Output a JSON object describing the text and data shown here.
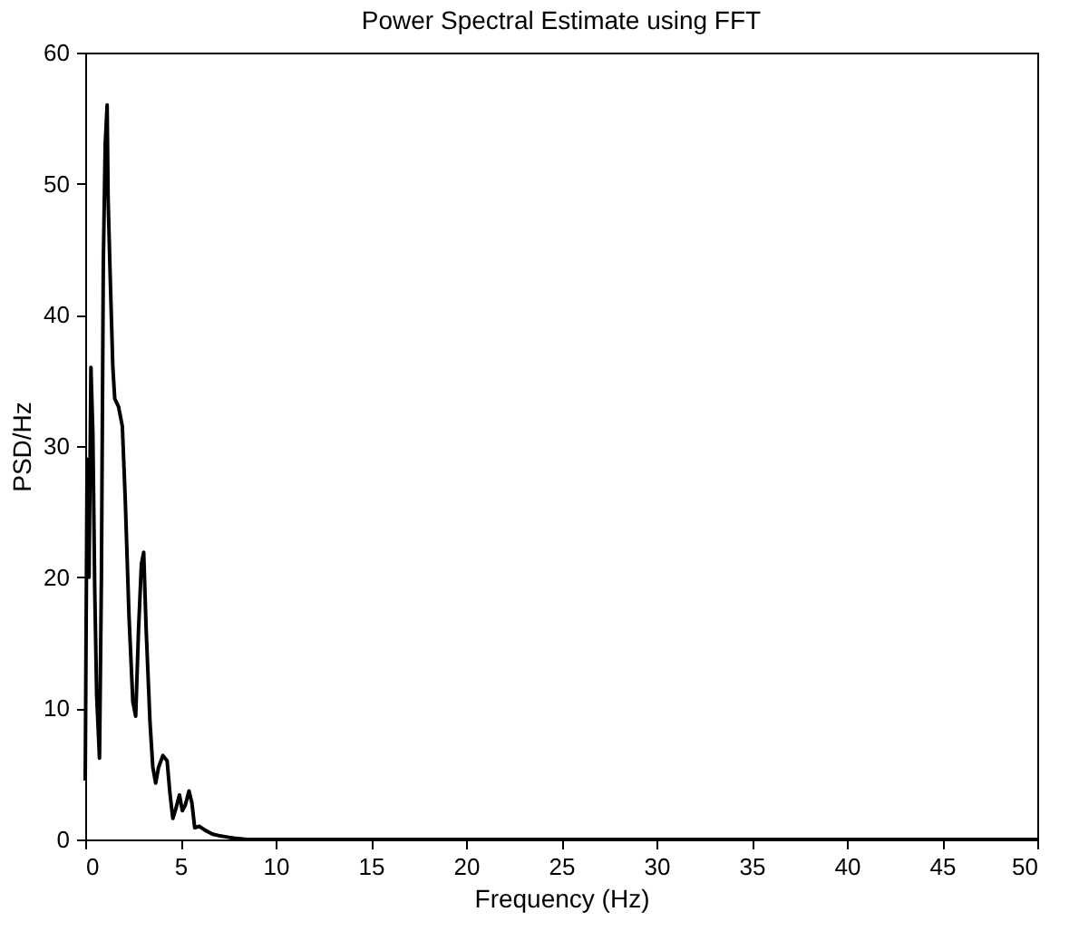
{
  "chart_data": {
    "type": "line",
    "title": "Power Spectral Estimate using FFT",
    "xlabel": "Frequency (Hz)",
    "ylabel": "PSD/Hz",
    "xlim": [
      0,
      50
    ],
    "xticks": [
      0,
      5,
      10,
      15,
      20,
      25,
      30,
      35,
      40,
      45,
      50
    ],
    "ylim": [
      0,
      60
    ],
    "yticks": [
      0,
      10,
      20,
      30,
      40,
      50,
      60
    ],
    "grid": false,
    "marker": "none",
    "line_style": "solid",
    "series": [
      {
        "color": "#000000",
        "x": [
          0,
          0.1,
          0.2,
          0.3,
          0.4,
          0.5,
          0.6,
          0.75,
          0.85,
          0.95,
          1.05,
          1.15,
          1.2,
          1.3,
          1.45,
          1.55,
          1.75,
          1.95,
          2.1,
          2.3,
          2.5,
          2.65,
          2.8,
          2.95,
          3.07,
          3.2,
          3.4,
          3.55,
          3.7,
          3.85,
          4.08,
          4.3,
          4.45,
          4.6,
          4.75,
          4.95,
          5.1,
          5.25,
          5.45,
          5.6,
          5.75,
          6.0,
          6.3,
          6.7,
          7.0,
          7.4,
          7.8,
          8.5,
          10,
          20,
          30,
          40,
          50
        ],
        "values": [
          4.5,
          29,
          20,
          36,
          31,
          19,
          11,
          6.2,
          20,
          44,
          53,
          56,
          49,
          43.5,
          36,
          33.6,
          33,
          31.5,
          26,
          17,
          10.5,
          9.4,
          16,
          21,
          21.9,
          16,
          9,
          5.5,
          4.3,
          5.5,
          6.4,
          6,
          3.5,
          1.6,
          2.3,
          3.4,
          2.2,
          2.6,
          3.7,
          2.8,
          0.9,
          1.0,
          0.7,
          0.4,
          0.3,
          0.2,
          0.1,
          0,
          0,
          0,
          0,
          0,
          0
        ]
      }
    ]
  }
}
